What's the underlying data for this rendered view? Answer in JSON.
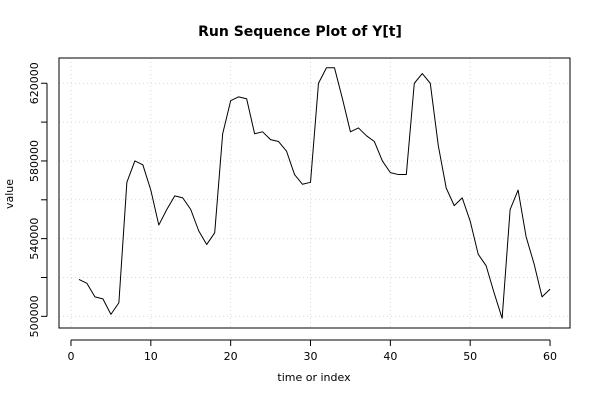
{
  "chart_data": {
    "type": "line",
    "title": "Run Sequence Plot of Y[t]",
    "xlabel": "time or index",
    "ylabel": "value",
    "xlim": [
      -1.5,
      62.5
    ],
    "ylim": [
      494000,
      633000
    ],
    "x_ticks": [
      0,
      10,
      20,
      30,
      40,
      50,
      60
    ],
    "y_ticks": [
      500000,
      540000,
      580000,
      620000
    ],
    "y_tick_labels": [
      "500000",
      "540000",
      "580000",
      "620000"
    ],
    "minor_y_ticks": [
      520000,
      560000,
      600000
    ],
    "grid": true,
    "series": [
      {
        "x": [
          1,
          2,
          3,
          4,
          5,
          6,
          7,
          8,
          9,
          10,
          11,
          12,
          13,
          14,
          15,
          16,
          17,
          18,
          19,
          20,
          21,
          22,
          23,
          24,
          25,
          26,
          27,
          28,
          29,
          30,
          31,
          32,
          33,
          34,
          35,
          36,
          37,
          38,
          39,
          40,
          41,
          42,
          43,
          44,
          45,
          46,
          47,
          48,
          49,
          50,
          51,
          52,
          53,
          54,
          55,
          56,
          57,
          58,
          59,
          60
        ],
        "values": [
          519000,
          517000,
          510000,
          509000,
          501000,
          507000,
          569000,
          580000,
          578000,
          565000,
          547000,
          555000,
          562000,
          561000,
          555000,
          544000,
          537000,
          543000,
          594000,
          611000,
          613000,
          612000,
          594000,
          595000,
          591000,
          590000,
          585000,
          573000,
          568000,
          569000,
          620000,
          628000,
          628000,
          612000,
          595000,
          597000,
          593000,
          590000,
          580000,
          574000,
          573000,
          573000,
          620000,
          625000,
          620000,
          588000,
          566000,
          557000,
          561000,
          549000,
          532000,
          526000,
          512000,
          499000,
          555000,
          565000,
          541000,
          527000,
          510000,
          514000
        ]
      }
    ]
  }
}
